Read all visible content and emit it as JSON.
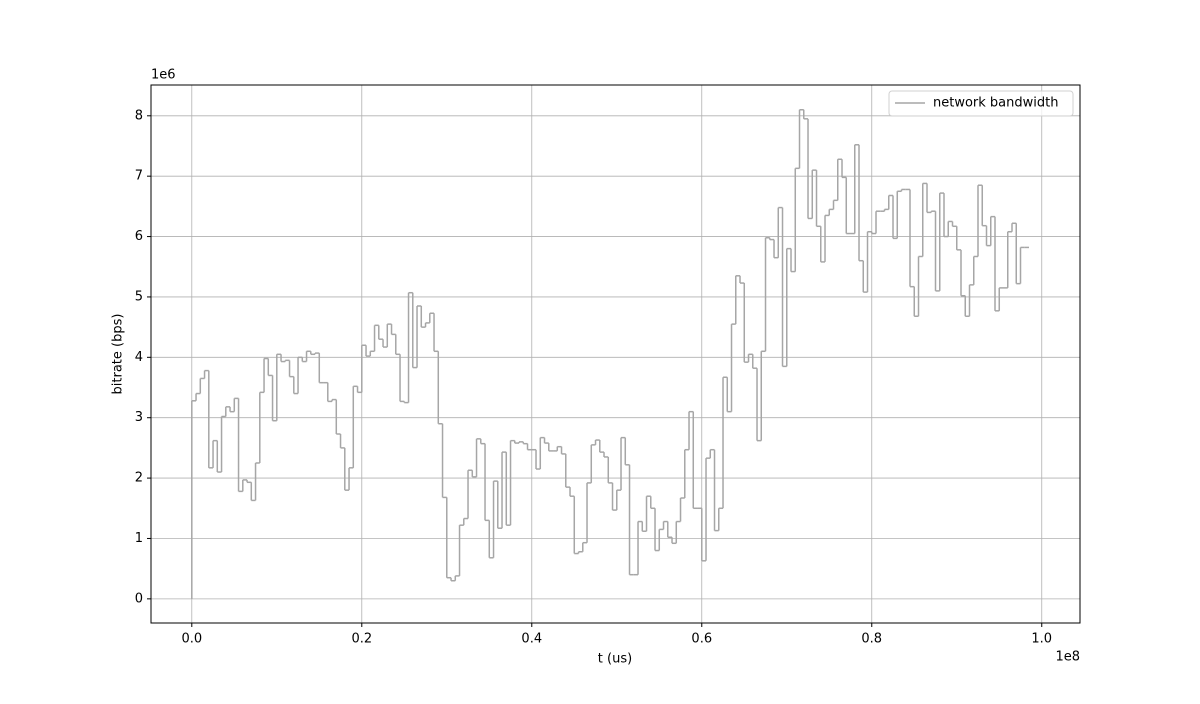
{
  "chart_data": {
    "type": "step",
    "xlabel": "t (us)",
    "ylabel": "bitrate (bps)",
    "x_offset_label": "1e8",
    "y_offset_label": "1e6",
    "xlim": [
      -0.048,
      1.045
    ],
    "ylim": [
      -0.4,
      8.51
    ],
    "xticks": [
      {
        "value": 0,
        "label": "0.0"
      },
      0.2,
      0.4,
      0.6,
      0.8,
      {
        "value": 1,
        "label": "1.0"
      }
    ],
    "yticks": [
      0,
      1,
      2,
      3,
      4,
      5,
      6,
      7,
      8
    ],
    "grid": true,
    "legend": "upper right",
    "series": [
      {
        "name": "network bandwidth",
        "color": "#a6a6a6",
        "x": [
          0,
          0.005,
          0.01,
          0.015,
          0.02,
          0.025,
          0.03,
          0.035,
          0.04,
          0.045,
          0.05,
          0.055,
          0.06,
          0.065,
          0.07,
          0.075,
          0.08,
          0.085,
          0.09,
          0.095,
          0.1,
          0.105,
          0.11,
          0.115,
          0.12,
          0.125,
          0.13,
          0.135,
          0.14,
          0.145,
          0.15,
          0.155,
          0.16,
          0.165,
          0.17,
          0.175,
          0.18,
          0.185,
          0.19,
          0.195,
          0.2,
          0.205,
          0.21,
          0.215,
          0.22,
          0.225,
          0.23,
          0.235,
          0.24,
          0.245,
          0.25,
          0.255,
          0.26,
          0.265,
          0.27,
          0.275,
          0.28,
          0.285,
          0.29,
          0.295,
          0.3,
          0.305,
          0.31,
          0.315,
          0.32,
          0.325,
          0.33,
          0.335,
          0.34,
          0.345,
          0.35,
          0.355,
          0.36,
          0.365,
          0.37,
          0.375,
          0.38,
          0.385,
          0.39,
          0.395,
          0.4,
          0.405,
          0.41,
          0.415,
          0.42,
          0.425,
          0.43,
          0.435,
          0.44,
          0.445,
          0.45,
          0.455,
          0.46,
          0.465,
          0.47,
          0.475,
          0.48,
          0.485,
          0.49,
          0.495,
          0.5,
          0.505,
          0.51,
          0.515,
          0.52,
          0.525,
          0.53,
          0.535,
          0.54,
          0.545,
          0.55,
          0.555,
          0.56,
          0.565,
          0.57,
          0.575,
          0.58,
          0.585,
          0.59,
          0.595,
          0.6,
          0.605,
          0.61,
          0.615,
          0.62,
          0.625,
          0.63,
          0.635,
          0.64,
          0.645,
          0.65,
          0.655,
          0.66,
          0.665,
          0.67,
          0.675,
          0.68,
          0.685,
          0.69,
          0.695,
          0.7,
          0.705,
          0.71,
          0.715,
          0.72,
          0.725,
          0.73,
          0.735,
          0.74,
          0.745,
          0.75,
          0.755,
          0.76,
          0.765,
          0.77,
          0.775,
          0.78,
          0.785,
          0.79,
          0.795,
          0.8,
          0.805,
          0.81,
          0.815,
          0.82,
          0.825,
          0.83,
          0.835,
          0.84,
          0.845,
          0.85,
          0.855,
          0.86,
          0.865,
          0.87,
          0.875,
          0.88,
          0.885,
          0.89,
          0.895,
          0.9,
          0.905,
          0.91,
          0.915,
          0.92,
          0.925,
          0.93,
          0.935,
          0.94,
          0.945,
          0.95,
          0.955,
          0.96,
          0.965,
          0.97,
          0.975,
          0.98,
          0.985
        ],
        "values": [
          0,
          3.28,
          3.4,
          3.65,
          3.78,
          2.17,
          2.62,
          2.1,
          3.02,
          3.18,
          3.1,
          3.32,
          1.78,
          1.97,
          1.93,
          1.63,
          2.25,
          3.42,
          3.98,
          3.7,
          2.95,
          4.05,
          3.93,
          3.95,
          3.68,
          3.4,
          4.0,
          3.93,
          4.1,
          4.05,
          4.07,
          3.58,
          3.58,
          3.27,
          3.3,
          2.73,
          2.5,
          1.8,
          2.17,
          3.52,
          3.42,
          4.2,
          4.02,
          4.1,
          4.53,
          4.3,
          4.17,
          4.55,
          4.38,
          4.05,
          3.27,
          3.25,
          5.07,
          3.83,
          4.85,
          4.5,
          4.57,
          4.73,
          4.1,
          2.9,
          1.68,
          0.35,
          0.3,
          0.38,
          1.22,
          1.33,
          2.13,
          2.02,
          2.65,
          2.57,
          1.3,
          0.68,
          1.95,
          1.17,
          2.43,
          1.22,
          2.62,
          2.58,
          2.6,
          2.57,
          2.47,
          2.47,
          2.15,
          2.67,
          2.58,
          2.45,
          2.45,
          2.52,
          2.4,
          1.85,
          1.7,
          0.75,
          0.78,
          0.93,
          1.92,
          2.55,
          2.63,
          2.43,
          2.35,
          1.92,
          1.47,
          1.8,
          2.67,
          2.22,
          0.4,
          0.4,
          1.28,
          1.12,
          1.7,
          1.5,
          0.8,
          1.15,
          1.28,
          1.02,
          0.92,
          1.28,
          1.67,
          2.47,
          3.1,
          1.5,
          1.5,
          0.63,
          2.33,
          2.47,
          1.13,
          1.5,
          3.67,
          3.1,
          4.55,
          5.35,
          5.23,
          3.92,
          4.05,
          3.82,
          2.62,
          4.1,
          5.98,
          5.95,
          5.65,
          6.48,
          3.85,
          5.8,
          5.42,
          7.13,
          8.1,
          7.95,
          6.3,
          7.1,
          6.17,
          5.58,
          6.35,
          6.45,
          6.6,
          7.28,
          6.98,
          6.05,
          6.05,
          7.52,
          5.6,
          5.08,
          6.08,
          6.05,
          6.42,
          6.42,
          6.45,
          6.68,
          5.97,
          6.75,
          6.78,
          6.78,
          5.17,
          4.68,
          5.67,
          6.88,
          6.4,
          6.42,
          5.1,
          6.72,
          6.0,
          6.25,
          6.17,
          5.78,
          5.02,
          4.68,
          5.2,
          5.67,
          6.85,
          6.18,
          5.85,
          6.33,
          4.77,
          5.15,
          5.15,
          6.08,
          6.22,
          5.22,
          5.82,
          5.82
        ]
      }
    ]
  }
}
